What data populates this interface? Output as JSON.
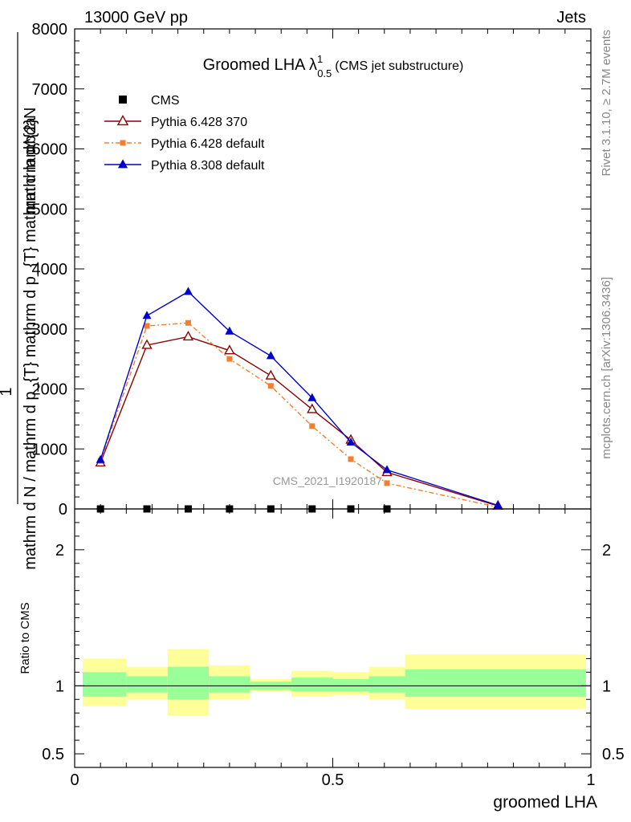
{
  "header": {
    "left": "13000 GeV pp",
    "right": "Jets"
  },
  "side_labels": {
    "rivet": "Rivet 3.1.10, ≥ 2.7M events",
    "mcplots": "mcplots.cern.ch [arXiv:1306.3436]"
  },
  "colors": {
    "cms": "#000000",
    "py6_370": "#8b0000",
    "py6_default": "#f08030",
    "py8_default": "#0000cc",
    "band_inner": "#99ff99",
    "band_outer": "#ffff99",
    "watermark": "#999999"
  },
  "chart_data": [
    {
      "type": "line",
      "title": "Groomed LHA",
      "title_symbol": "λ",
      "title_sup": "1",
      "title_sub": "0.5",
      "title_note": "(CMS jet substructure)",
      "ylabel_top": "mathrm d^{2}N",
      "ylabel_bottom": "mathrm d N / mathrm d p_{T} mathrm d p_{T} mathrm d lambda",
      "ylabel_one": "1",
      "watermark": "CMS_2021_I1920187",
      "xlim": [
        0,
        1
      ],
      "ylim": [
        0,
        8000
      ],
      "y_ticks": [
        0,
        1000,
        2000,
        3000,
        4000,
        5000,
        6000,
        7000,
        8000
      ],
      "y_tick_labels": [
        "0",
        "1000",
        "2000",
        "3000",
        "4000",
        "5000",
        "6000",
        "7000",
        "8000"
      ],
      "series": [
        {
          "name": "CMS",
          "marker": "square",
          "x": [
            0.05,
            0.14,
            0.22,
            0.3,
            0.38,
            0.46,
            0.535,
            0.605
          ],
          "values": [
            0,
            0,
            0,
            0,
            0,
            0,
            0,
            0
          ]
        },
        {
          "name": "Pythia 6.428 370",
          "marker": "open-triangle",
          "x": [
            0.05,
            0.14,
            0.22,
            0.3,
            0.38,
            0.46,
            0.535,
            0.605,
            0.82
          ],
          "values": [
            770,
            2730,
            2870,
            2640,
            2220,
            1660,
            1150,
            610,
            50
          ]
        },
        {
          "name": "Pythia 6.428 default",
          "marker": "square",
          "dashed": true,
          "x": [
            0.05,
            0.14,
            0.22,
            0.3,
            0.38,
            0.46,
            0.535,
            0.605,
            0.82
          ],
          "values": [
            800,
            3050,
            3100,
            2500,
            2050,
            1380,
            830,
            430,
            30
          ]
        },
        {
          "name": "Pythia 8.308 default",
          "marker": "filled-triangle",
          "x": [
            0.05,
            0.14,
            0.22,
            0.3,
            0.38,
            0.46,
            0.535,
            0.605,
            0.82
          ],
          "values": [
            820,
            3220,
            3620,
            2960,
            2550,
            1850,
            1110,
            650,
            60
          ]
        }
      ]
    },
    {
      "type": "area",
      "ylabel": "Ratio to CMS",
      "xlabel": "groomed LHA",
      "xlim": [
        0,
        1
      ],
      "ylim": [
        0.4,
        2.3
      ],
      "y_ticks": [
        0.5,
        1,
        2
      ],
      "y_tick_labels": [
        "0.5",
        "1",
        "2"
      ],
      "x_ticks": [
        0,
        0.5,
        1
      ],
      "x_tick_labels": [
        "0",
        "0.5",
        "1"
      ],
      "bins": [
        {
          "lo": 0.0,
          "hi": 0.1,
          "inner_lo": 0.92,
          "inner_hi": 1.1,
          "outer_lo": 0.85,
          "outer_hi": 1.2
        },
        {
          "lo": 0.1,
          "hi": 0.18,
          "inner_lo": 0.95,
          "inner_hi": 1.07,
          "outer_lo": 0.9,
          "outer_hi": 1.14
        },
        {
          "lo": 0.18,
          "hi": 0.26,
          "inner_lo": 0.9,
          "inner_hi": 1.14,
          "outer_lo": 0.78,
          "outer_hi": 1.27
        },
        {
          "lo": 0.26,
          "hi": 0.34,
          "inner_lo": 0.95,
          "inner_hi": 1.07,
          "outer_lo": 0.9,
          "outer_hi": 1.15
        },
        {
          "lo": 0.34,
          "hi": 0.42,
          "inner_lo": 0.97,
          "inner_hi": 1.03,
          "outer_lo": 0.96,
          "outer_hi": 1.05
        },
        {
          "lo": 0.42,
          "hi": 0.5,
          "inner_lo": 0.96,
          "inner_hi": 1.06,
          "outer_lo": 0.92,
          "outer_hi": 1.11
        },
        {
          "lo": 0.5,
          "hi": 0.57,
          "inner_lo": 0.96,
          "inner_hi": 1.05,
          "outer_lo": 0.93,
          "outer_hi": 1.1
        },
        {
          "lo": 0.57,
          "hi": 0.64,
          "inner_lo": 0.95,
          "inner_hi": 1.07,
          "outer_lo": 0.9,
          "outer_hi": 1.14
        },
        {
          "lo": 0.64,
          "hi": 1.0,
          "inner_lo": 0.92,
          "inner_hi": 1.12,
          "outer_lo": 0.83,
          "outer_hi": 1.23
        }
      ]
    }
  ]
}
